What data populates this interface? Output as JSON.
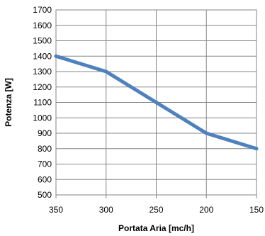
{
  "chart_data": {
    "type": "line",
    "xlabel": "Portata Aria [mc/h]",
    "ylabel": "Potenza [W]",
    "x_reversed": true,
    "xlim": [
      350,
      150
    ],
    "ylim": [
      500,
      1700
    ],
    "xticks": [
      350,
      300,
      250,
      200,
      150
    ],
    "yticks": [
      500,
      600,
      700,
      800,
      900,
      1000,
      1100,
      1200,
      1300,
      1400,
      1500,
      1600,
      1700
    ],
    "grid": true,
    "series": [
      {
        "color": "#4f81bd",
        "x": [
          350,
          300,
          250,
          200,
          150
        ],
        "y": [
          1400,
          1300,
          1100,
          900,
          800
        ]
      }
    ]
  }
}
